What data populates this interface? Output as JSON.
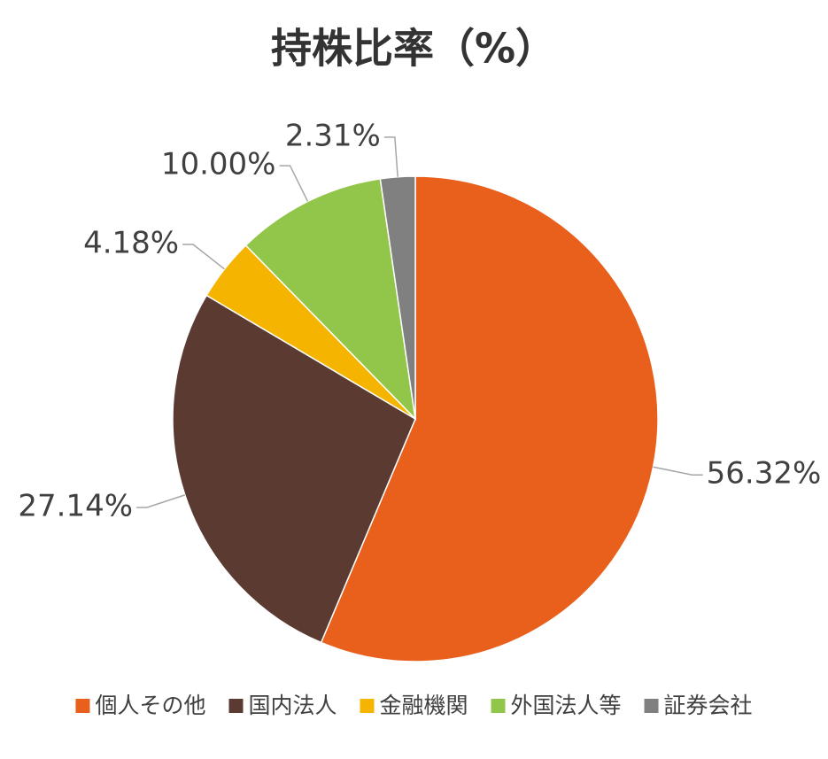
{
  "chart_data": {
    "type": "pie",
    "title": "持株比率（%）",
    "categories": [
      "個人その他",
      "国内法人",
      "金融機関",
      "外国法人等",
      "証券会社"
    ],
    "values": [
      56.32,
      27.14,
      4.18,
      10.0,
      2.31
    ],
    "value_labels": [
      "56.32%",
      "27.14%",
      "4.18%",
      "10.00%",
      "2.31%"
    ],
    "colors": [
      "#e8601c",
      "#5b3a32",
      "#f5b400",
      "#92c64a",
      "#808080"
    ],
    "legend": "bottom"
  }
}
